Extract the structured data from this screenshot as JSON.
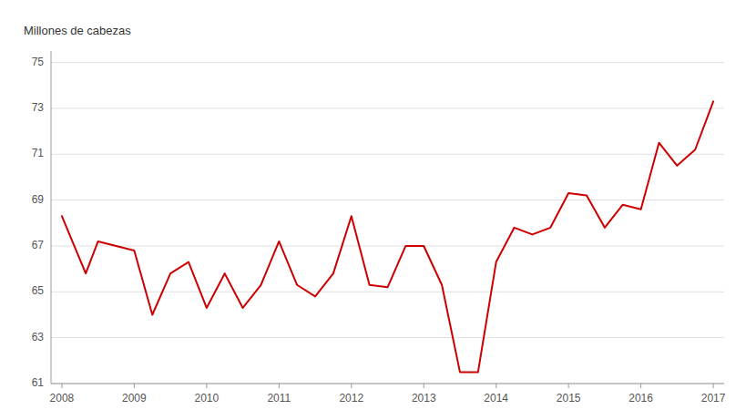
{
  "chart_data": {
    "type": "line",
    "ylabel": "Millones de cabezas",
    "color": "#cc0000",
    "x": [
      2008.0,
      2008.33,
      2008.5,
      2008.75,
      2009.0,
      2009.25,
      2009.5,
      2009.75,
      2010.0,
      2010.25,
      2010.5,
      2010.75,
      2011.0,
      2011.25,
      2011.5,
      2011.75,
      2012.0,
      2012.25,
      2012.5,
      2012.75,
      2013.0,
      2013.25,
      2013.5,
      2013.75,
      2014.0,
      2014.25,
      2014.5,
      2014.75,
      2015.0,
      2015.25,
      2015.5,
      2015.75,
      2016.0,
      2016.25,
      2016.5,
      2016.75,
      2017.0
    ],
    "values": [
      68.3,
      65.8,
      67.2,
      67.0,
      66.8,
      64.0,
      65.8,
      66.3,
      64.3,
      65.8,
      64.3,
      65.3,
      67.2,
      65.3,
      64.8,
      65.8,
      68.3,
      65.3,
      65.2,
      67.0,
      67.0,
      65.3,
      61.5,
      61.5,
      66.3,
      67.8,
      67.5,
      67.8,
      69.3,
      69.2,
      67.8,
      68.8,
      68.6,
      71.5,
      70.5,
      71.2,
      73.3
    ],
    "xlim": [
      2007.85,
      2017.15
    ],
    "xticks": [
      2008,
      2009,
      2010,
      2011,
      2012,
      2013,
      2014,
      2015,
      2016,
      2017
    ],
    "ylim": [
      61,
      75.5
    ],
    "yticks": [
      61,
      63,
      65,
      67,
      69,
      71,
      73,
      75
    ],
    "grid": true
  }
}
